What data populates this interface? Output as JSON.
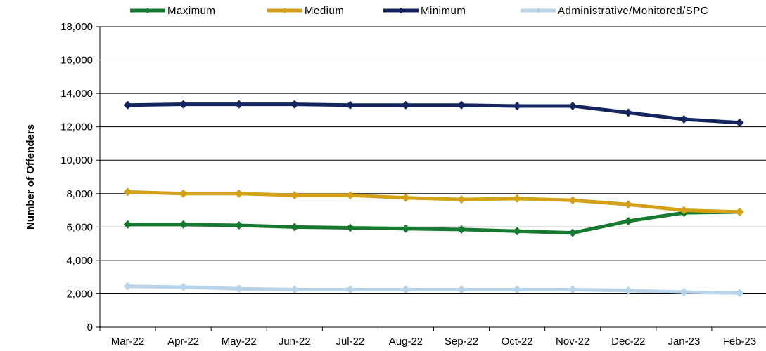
{
  "chart_data": {
    "type": "line",
    "title": "",
    "xlabel": "",
    "ylabel": "Number of Offenders",
    "ylim": [
      0,
      18000
    ],
    "yticks": [
      0,
      2000,
      4000,
      6000,
      8000,
      10000,
      12000,
      14000,
      16000,
      18000
    ],
    "ytick_labels": [
      "0",
      "2,000",
      "4,000",
      "6,000",
      "8,000",
      "10,000",
      "12,000",
      "14,000",
      "16,000",
      "18,000"
    ],
    "grid": "horizontal",
    "legend_position": "top",
    "categories": [
      "Mar-22",
      "Apr-22",
      "May-22",
      "Jun-22",
      "Jul-22",
      "Aug-22",
      "Sep-22",
      "Oct-22",
      "Nov-22",
      "Dec-22",
      "Jan-23",
      "Feb-23"
    ],
    "series": [
      {
        "name": "Maximum",
        "color": "#157a2f",
        "values": [
          6150,
          6150,
          6100,
          6000,
          5950,
          5900,
          5850,
          5750,
          5650,
          6350,
          6850,
          6900
        ]
      },
      {
        "name": "Medium",
        "color": "#d4a017",
        "values": [
          8100,
          8000,
          8000,
          7900,
          7900,
          7750,
          7650,
          7700,
          7600,
          7350,
          7000,
          6900
        ]
      },
      {
        "name": "Minimum",
        "color": "#13245e",
        "values": [
          13300,
          13350,
          13350,
          13350,
          13300,
          13300,
          13300,
          13250,
          13250,
          12850,
          12450,
          12250
        ]
      },
      {
        "name": "Administrative/Monitored/SPC",
        "color": "#b9d3e8",
        "values": [
          2450,
          2400,
          2300,
          2250,
          2250,
          2250,
          2250,
          2250,
          2250,
          2200,
          2100,
          2050
        ]
      }
    ]
  }
}
